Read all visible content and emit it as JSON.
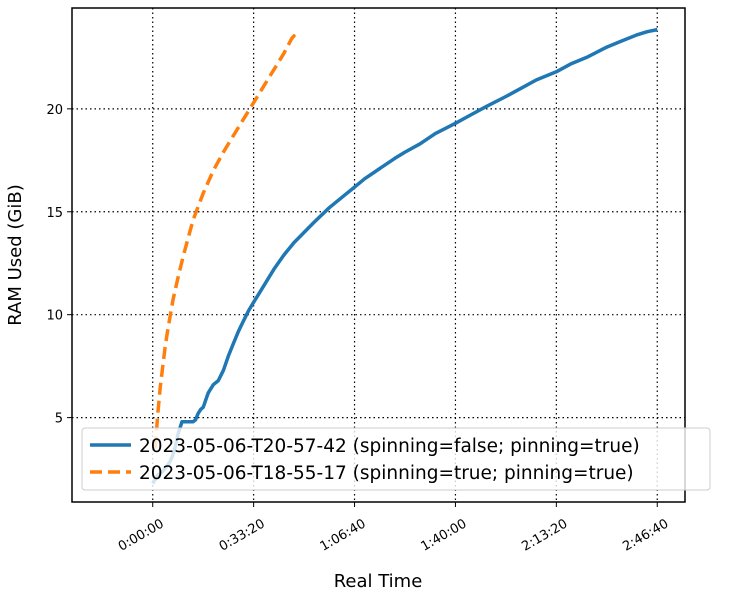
{
  "chart_data": {
    "type": "line",
    "title": "",
    "xlabel": "Real Time",
    "ylabel": "RAM Used (GiB)",
    "xlim_seconds": [
      -1600,
      10550
    ],
    "ylim": [
      0.9,
      24.9
    ],
    "grid": true,
    "grid_style": "dotted",
    "legend_position": "lower-right",
    "x_ticks": [
      {
        "value": 0,
        "label": "0:00:00"
      },
      {
        "value": 2000,
        "label": "0:33:20"
      },
      {
        "value": 4000,
        "label": "1:06:40"
      },
      {
        "value": 6000,
        "label": "1:40:00"
      },
      {
        "value": 8000,
        "label": "2:13:20"
      },
      {
        "value": 10000,
        "label": "2:46:40"
      }
    ],
    "y_ticks": [
      {
        "value": 5,
        "label": "5"
      },
      {
        "value": 10,
        "label": "10"
      },
      {
        "value": 15,
        "label": "15"
      },
      {
        "value": 20,
        "label": "20"
      }
    ],
    "series": [
      {
        "name": "2023-05-06-T20-57-42 (spinning=false; pinning=true)",
        "color": "#1f77b4",
        "dash": "solid",
        "x": [
          0,
          50,
          100,
          200,
          300,
          350,
          400,
          450,
          500,
          580,
          600,
          700,
          800,
          850,
          900,
          950,
          1000,
          1100,
          1200,
          1300,
          1400,
          1500,
          1600,
          1700,
          1800,
          1900,
          2000,
          2200,
          2400,
          2600,
          2800,
          3000,
          3200,
          3500,
          3800,
          4000,
          4200,
          4500,
          4800,
          5000,
          5300,
          5600,
          6000,
          6300,
          6600,
          7000,
          7300,
          7600,
          8000,
          8300,
          8600,
          9000,
          9300,
          9600,
          9800,
          10000
        ],
        "y": [
          1.8,
          2.0,
          2.2,
          2.4,
          2.7,
          2.9,
          3.2,
          3.6,
          4.2,
          4.8,
          4.8,
          4.8,
          4.8,
          4.9,
          5.2,
          5.4,
          5.5,
          6.2,
          6.6,
          6.8,
          7.3,
          8.0,
          8.6,
          9.2,
          9.7,
          10.2,
          10.6,
          11.4,
          12.2,
          12.9,
          13.5,
          14.0,
          14.5,
          15.2,
          15.8,
          16.2,
          16.6,
          17.1,
          17.6,
          17.9,
          18.3,
          18.8,
          19.3,
          19.7,
          20.1,
          20.6,
          21.0,
          21.4,
          21.8,
          22.2,
          22.5,
          23.0,
          23.3,
          23.6,
          23.75,
          23.85
        ]
      },
      {
        "name": "2023-05-06-T18-55-17 (spinning=true; pinning=true)",
        "color": "#ff7f0e",
        "dash": "dashed",
        "x": [
          50,
          100,
          150,
          200,
          250,
          300,
          350,
          400,
          500,
          600,
          700,
          800,
          1000,
          1200,
          1400,
          1600,
          1800,
          2000,
          2200,
          2400,
          2600,
          2750,
          2800,
          2820
        ],
        "y": [
          3.5,
          5.2,
          6.5,
          7.5,
          8.5,
          9.3,
          10.0,
          10.7,
          11.8,
          12.8,
          13.7,
          14.6,
          15.9,
          17.0,
          17.9,
          18.7,
          19.5,
          20.3,
          21.1,
          21.9,
          22.7,
          23.4,
          23.55,
          23.3
        ]
      }
    ]
  }
}
